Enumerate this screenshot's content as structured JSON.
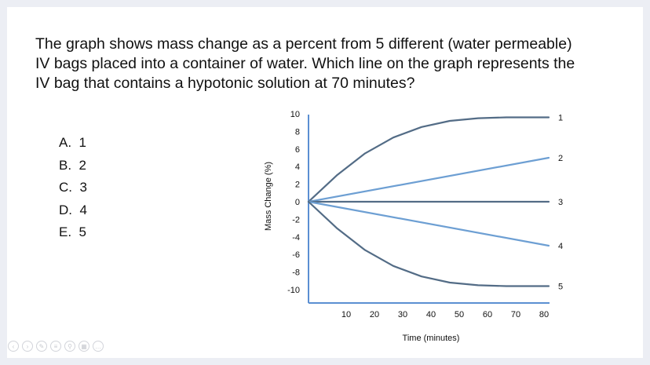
{
  "slide": {
    "question": "The graph shows mass change as a percent from 5 different (water permeable) IV bags placed into a container of water. Which line on the graph represents the IV bag that contains a hypotonic solution at 70 minutes?",
    "options": [
      "A.  1",
      "B.  2",
      "C.  3",
      "D.  4",
      "E.  5"
    ]
  },
  "chart_data": {
    "type": "line",
    "title": "",
    "xlabel": "Time (minutes)",
    "ylabel": "Mass Change (%)",
    "xlim": [
      0,
      85
    ],
    "ylim": [
      -11,
      11
    ],
    "x_ticks": [
      10,
      20,
      30,
      40,
      50,
      60,
      70,
      80
    ],
    "y_ticks": [
      10,
      8,
      6,
      4,
      2,
      0,
      -2,
      -4,
      -6,
      -8,
      -10
    ],
    "grid": false,
    "colors": {
      "dark": "#536c86",
      "light": "#6d9fd3"
    },
    "series": [
      {
        "name": "1",
        "color": "dark",
        "x": [
          0,
          10,
          20,
          30,
          40,
          50,
          60,
          70,
          80,
          85
        ],
        "y": [
          0,
          3.0,
          5.5,
          7.3,
          8.5,
          9.2,
          9.5,
          9.6,
          9.6,
          9.6
        ]
      },
      {
        "name": "2",
        "color": "light",
        "x": [
          0,
          85
        ],
        "y": [
          0,
          5.0
        ]
      },
      {
        "name": "3",
        "color": "dark",
        "x": [
          0,
          85
        ],
        "y": [
          0,
          0
        ]
      },
      {
        "name": "4",
        "color": "light",
        "x": [
          0,
          85
        ],
        "y": [
          0,
          -5.0
        ]
      },
      {
        "name": "5",
        "color": "dark",
        "x": [
          0,
          10,
          20,
          30,
          40,
          50,
          60,
          70,
          80,
          85
        ],
        "y": [
          0,
          -3.0,
          -5.5,
          -7.3,
          -8.5,
          -9.2,
          -9.5,
          -9.6,
          -9.6,
          -9.6
        ]
      }
    ]
  },
  "controls": [
    {
      "icon": "previous-icon",
      "glyph": "‹"
    },
    {
      "icon": "next-icon",
      "glyph": "›"
    },
    {
      "icon": "pen-icon",
      "glyph": "✎"
    },
    {
      "icon": "menu-icon",
      "glyph": "≡"
    },
    {
      "icon": "search-icon",
      "glyph": "⚲"
    },
    {
      "icon": "slides-icon",
      "glyph": "▦"
    },
    {
      "icon": "more-icon",
      "glyph": "…"
    }
  ]
}
